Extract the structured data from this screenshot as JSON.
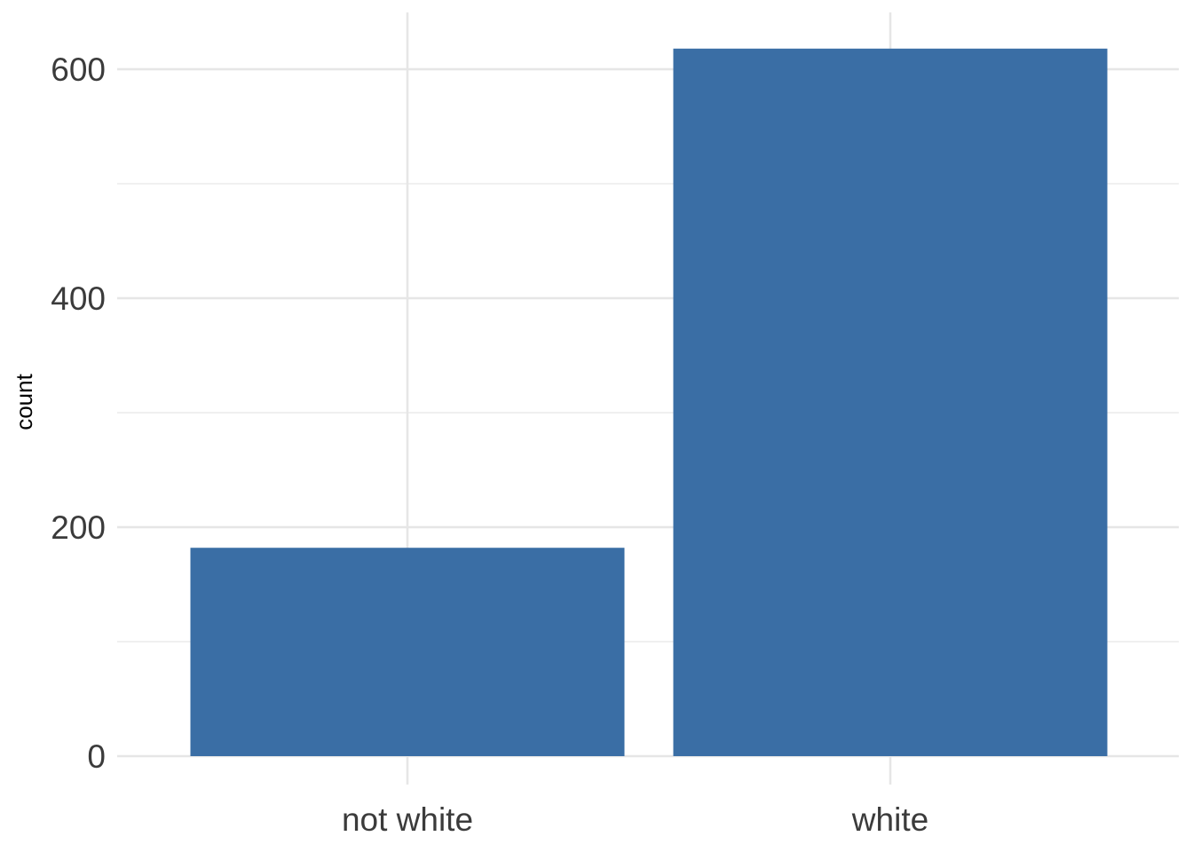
{
  "chart_data": {
    "type": "bar",
    "title": "",
    "xlabel": "",
    "ylabel": "count",
    "categories": [
      "not white",
      "white"
    ],
    "values": [
      182,
      618
    ],
    "ylim": [
      0,
      640
    ],
    "y_major_ticks": [
      0,
      200,
      400,
      600
    ],
    "y_minor_ticks": [
      100,
      300,
      500
    ],
    "grid": true,
    "legend": "none",
    "bar_color": "#3a6ea5"
  }
}
